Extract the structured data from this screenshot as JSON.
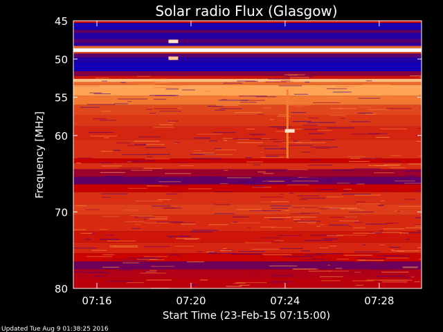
{
  "chart_data": {
    "type": "heatmap",
    "title": "Solar radio Flux (Glasgow)",
    "xlabel": "Start Time (23-Feb-15 07:15:00)",
    "ylabel": "Frequency [MHz]",
    "footer": "Updated Tue Aug  9 01:38:25 2016",
    "x_axis": {
      "unit": "minutes after 07:15:00",
      "range": [
        0,
        14.8
      ],
      "ticks": [
        {
          "value": 1,
          "label": "07:16"
        },
        {
          "value": 5,
          "label": "07:20"
        },
        {
          "value": 9,
          "label": "07:24"
        },
        {
          "value": 13,
          "label": "07:28"
        }
      ]
    },
    "y_axis": {
      "unit": "MHz",
      "range": [
        45,
        80
      ],
      "inverted": true,
      "ticks": [
        {
          "value": 45,
          "label": "45"
        },
        {
          "value": 50,
          "label": "50"
        },
        {
          "value": 55,
          "label": "55"
        },
        {
          "value": 60,
          "label": "60"
        },
        {
          "value": 70,
          "label": "70"
        },
        {
          "value": 80,
          "label": "80"
        }
      ]
    },
    "colors": {
      "low": "#0000c8",
      "mid": "#c80000",
      "high": "#ff9a40",
      "peak": "#ffffff"
    },
    "bands": [
      {
        "from": 45.0,
        "to": 45.3,
        "intensity": 0.48
      },
      {
        "from": 45.3,
        "to": 46.2,
        "intensity": 0.05
      },
      {
        "from": 46.2,
        "to": 46.6,
        "intensity": 0.22
      },
      {
        "from": 46.6,
        "to": 47.4,
        "intensity": 0.08
      },
      {
        "from": 47.4,
        "to": 47.9,
        "intensity": 0.2
      },
      {
        "from": 47.9,
        "to": 48.3,
        "intensity": 0.1
      },
      {
        "from": 48.3,
        "to": 48.6,
        "intensity": 0.7
      },
      {
        "from": 48.6,
        "to": 49.1,
        "intensity": 1.0
      },
      {
        "from": 49.1,
        "to": 49.3,
        "intensity": 0.6
      },
      {
        "from": 49.3,
        "to": 49.8,
        "intensity": 0.2
      },
      {
        "from": 49.8,
        "to": 50.4,
        "intensity": 0.08
      },
      {
        "from": 50.4,
        "to": 51.6,
        "intensity": 0.04
      },
      {
        "from": 51.6,
        "to": 52.2,
        "intensity": 0.3
      },
      {
        "from": 52.2,
        "to": 52.6,
        "intensity": 0.5
      },
      {
        "from": 52.6,
        "to": 53.0,
        "intensity": 0.88
      },
      {
        "from": 53.0,
        "to": 53.4,
        "intensity": 0.7
      },
      {
        "from": 53.4,
        "to": 54.8,
        "intensity": 0.84
      },
      {
        "from": 54.8,
        "to": 56.0,
        "intensity": 0.74
      },
      {
        "from": 56.0,
        "to": 57.3,
        "intensity": 0.62
      },
      {
        "from": 57.3,
        "to": 58.8,
        "intensity": 0.58
      },
      {
        "from": 58.8,
        "to": 60.5,
        "intensity": 0.54
      },
      {
        "from": 60.5,
        "to": 63.0,
        "intensity": 0.56
      },
      {
        "from": 63.0,
        "to": 63.6,
        "intensity": 0.45
      },
      {
        "from": 63.6,
        "to": 64.4,
        "intensity": 0.56
      },
      {
        "from": 64.4,
        "to": 65.4,
        "intensity": 0.35
      },
      {
        "from": 65.4,
        "to": 66.4,
        "intensity": 0.22
      },
      {
        "from": 66.4,
        "to": 67.4,
        "intensity": 0.45
      },
      {
        "from": 67.4,
        "to": 69.0,
        "intensity": 0.56
      },
      {
        "from": 69.0,
        "to": 70.4,
        "intensity": 0.6
      },
      {
        "from": 70.4,
        "to": 72.5,
        "intensity": 0.55
      },
      {
        "from": 72.5,
        "to": 74.0,
        "intensity": 0.5
      },
      {
        "from": 74.0,
        "to": 75.4,
        "intensity": 0.54
      },
      {
        "from": 75.4,
        "to": 76.5,
        "intensity": 0.46
      },
      {
        "from": 76.5,
        "to": 77.5,
        "intensity": 0.25
      },
      {
        "from": 77.5,
        "to": 78.6,
        "intensity": 0.4
      },
      {
        "from": 78.6,
        "to": 80.0,
        "intensity": 0.42
      }
    ],
    "annotations": [
      {
        "type": "burst",
        "time": 9.1,
        "freq_from": 54.0,
        "freq_to": 63.0,
        "intensity": 0.75
      },
      {
        "type": "spike",
        "time": 9.2,
        "freq": 59.4,
        "intensity": 0.95
      },
      {
        "type": "interference",
        "time": 4.25,
        "freq": 47.7,
        "intensity": 0.95
      },
      {
        "type": "interference",
        "time": 4.25,
        "freq": 49.9,
        "intensity": 0.9
      }
    ]
  }
}
